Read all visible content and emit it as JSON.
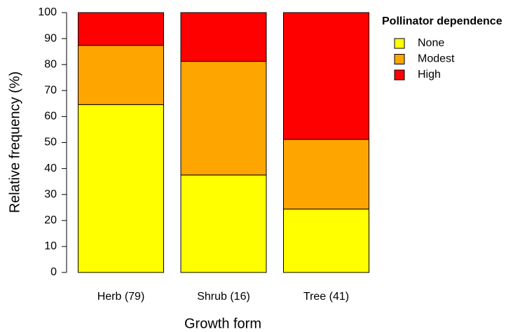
{
  "chart_data": {
    "type": "bar",
    "stacked": true,
    "x_label": "Growth form",
    "y_label": "Relative frequency (%)",
    "categories": [
      "Herb (79)",
      "Shrub (16)",
      "Tree (41)"
    ],
    "series": [
      {
        "name": "None",
        "color": "#ffff00",
        "values": [
          64.6,
          37.5,
          24.4
        ]
      },
      {
        "name": "Modest",
        "color": "#ffa500",
        "values": [
          22.8,
          43.75,
          26.8
        ]
      },
      {
        "name": "High",
        "color": "#ff0000",
        "values": [
          12.6,
          18.75,
          48.8
        ]
      }
    ],
    "legend_title": "Pollinator dependence",
    "legend_position": "top-right",
    "ylim": [
      0,
      100
    ],
    "yticks": [
      0,
      10,
      20,
      30,
      40,
      50,
      60,
      70,
      80,
      90,
      100
    ]
  }
}
